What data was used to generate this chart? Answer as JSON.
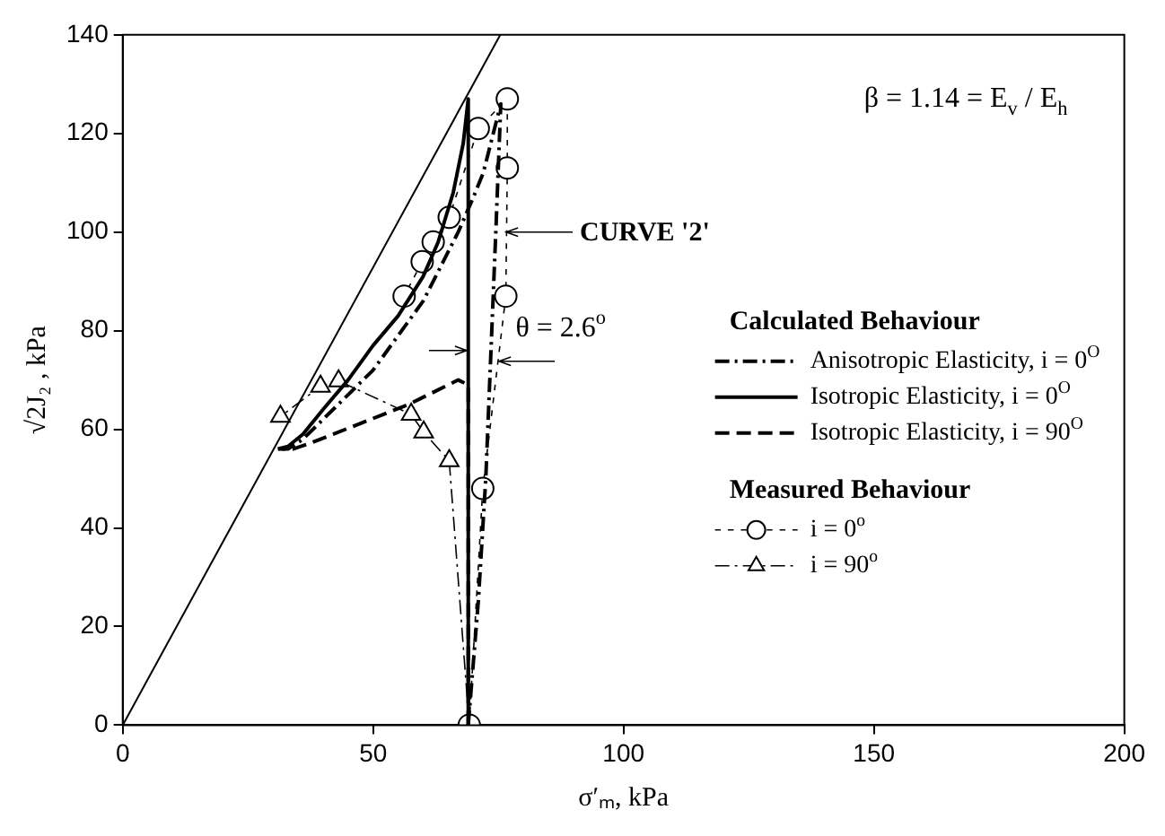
{
  "chart_data": {
    "type": "line",
    "xlabel": "σ′ₘ, kPa",
    "ylabel": "√2J₂ , kPa",
    "xlim": [
      0,
      200
    ],
    "xticks": [
      0,
      50,
      100,
      150,
      200
    ],
    "ylim": [
      0,
      140
    ],
    "yticks": [
      0,
      20,
      40,
      60,
      80,
      100,
      120,
      140
    ],
    "grid": false,
    "legend": "right",
    "annotations": [
      "β = 1.14 = E$_{v}$ / E$_{h}$",
      {
        "text": "CURVE '2'",
        "x": 75.5,
        "y": 100
      },
      {
        "text": "θ = 2.6$^{o}$",
        "x": 72,
        "y": 75
      },
      "Calculated Behaviour",
      "Measured Behaviour"
    ],
    "series": [
      {
        "color": "#000000",
        "line_style": "solid",
        "marker": "none",
        "x": [
          0,
          75.4
        ],
        "values": [
          0,
          140
        ]
      },
      {
        "name": "Anisotropic Elasticity, i = 0$^{O}$",
        "color": "#000000",
        "line_style": "dashdot",
        "marker": "none",
        "x": [
          69,
          71,
          72.5,
          73.5,
          74.5,
          75.5,
          74,
          72,
          70,
          67,
          64,
          60,
          55,
          50,
          45,
          40,
          36,
          33,
          31
        ],
        "values": [
          0,
          25,
          50,
          75,
          100,
          126,
          120,
          112,
          107,
          100,
          94,
          86,
          79,
          72,
          67,
          62,
          58,
          56,
          56
        ]
      },
      {
        "name": "Isotropic Elasticity, i = 0$^{O}$",
        "color": "#000000",
        "line_style": "solid",
        "marker": "none",
        "x": [
          69,
          69,
          68,
          66,
          63,
          60,
          55,
          50,
          45,
          40,
          36,
          33,
          31
        ],
        "values": [
          0,
          127,
          118,
          108,
          98,
          91,
          83,
          77,
          70,
          64,
          59,
          56.5,
          56
        ]
      },
      {
        "name": "Isotropic Elasticity, i = 90$^{O}$",
        "color": "#000000",
        "line_style": "dashed",
        "marker": "none",
        "x": [
          69,
          69,
          67,
          62,
          57,
          52,
          47,
          42,
          37,
          34,
          31
        ],
        "values": [
          0,
          69,
          70,
          67.5,
          65,
          63,
          61,
          59,
          57,
          56,
          56
        ]
      },
      {
        "name": "i = 0$^{o}$",
        "color": "#000000",
        "line_style": "dashed",
        "marker": "circle",
        "x": [
          69.2,
          71.9,
          76.5,
          76.8,
          76.8,
          71,
          65.2,
          62,
          59.8,
          56.2
        ],
        "values": [
          0,
          48,
          87,
          113,
          127,
          121,
          103,
          98,
          94,
          87
        ]
      },
      {
        "name": "i = 90$^{o}$",
        "color": "#000000",
        "line_style": "dashdot",
        "marker": "triangle",
        "x": [
          69.2,
          65.2,
          60.1,
          57.6,
          43.1,
          39.5,
          31.5
        ],
        "values": [
          0,
          53.6,
          59.4,
          63,
          69.8,
          68.7,
          62.6
        ]
      }
    ]
  }
}
